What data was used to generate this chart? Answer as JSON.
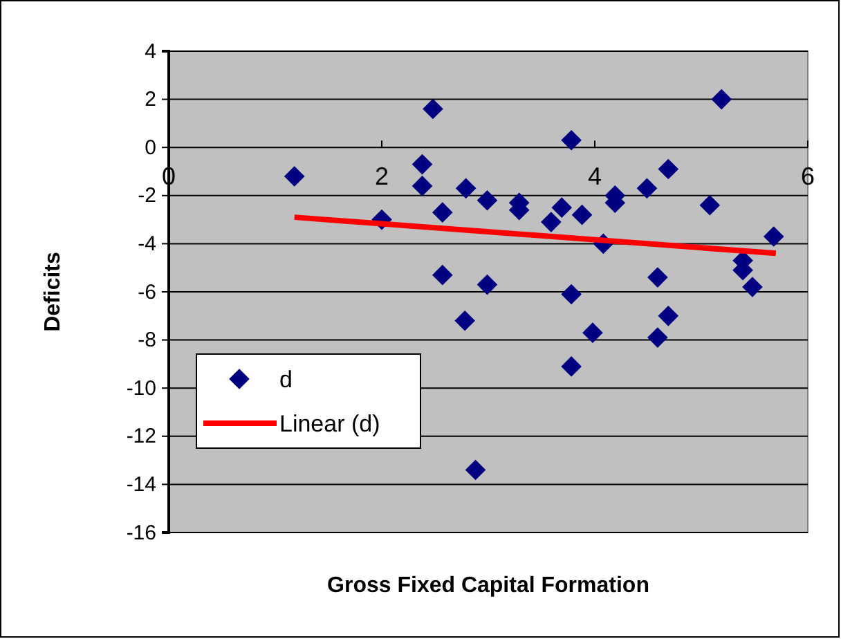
{
  "chart_data": {
    "type": "scatter",
    "xlabel": "Gross Fixed Capital Formation",
    "ylabel": "Deficits",
    "xlim": [
      0,
      6
    ],
    "xticks": [
      0,
      2,
      4,
      6
    ],
    "ylim": [
      -16,
      4
    ],
    "yticks": [
      -16,
      -14,
      -12,
      -10,
      -8,
      -6,
      -4,
      -2,
      0,
      2,
      4
    ],
    "grid": "y",
    "legend": "bottom left",
    "marker": "diamond",
    "series": [
      {
        "name": "d",
        "color": "#000080",
        "x": [
          1.18,
          2.0,
          2.38,
          2.38,
          2.48,
          2.57,
          2.57,
          2.79,
          2.78,
          2.99,
          2.99,
          2.88,
          3.29,
          3.29,
          3.59,
          3.69,
          3.78,
          3.88,
          3.78,
          3.78,
          3.98,
          4.08,
          4.19,
          4.19,
          4.49,
          4.69,
          4.59,
          4.69,
          4.59,
          5.08,
          5.19,
          5.39,
          5.39,
          5.48,
          5.68
        ],
        "values": [
          -1.2,
          -3.0,
          -0.7,
          -1.6,
          1.6,
          -2.7,
          -5.3,
          -1.7,
          -7.2,
          -2.2,
          -5.7,
          -13.4,
          -2.3,
          -2.6,
          -3.1,
          -2.5,
          0.3,
          -2.8,
          -6.1,
          -9.1,
          -7.7,
          -4.0,
          -2.0,
          -2.3,
          -1.7,
          -0.9,
          -5.4,
          -7.0,
          -7.9,
          -2.4,
          2.0,
          -4.7,
          -5.1,
          -5.8,
          -3.7
        ]
      },
      {
        "name": "Linear (d)",
        "type": "line",
        "color": "#ff0000",
        "line_style": "solid",
        "marker": "none",
        "x": [
          1.18,
          5.7
        ],
        "values": [
          -2.9,
          -4.4
        ]
      }
    ]
  }
}
